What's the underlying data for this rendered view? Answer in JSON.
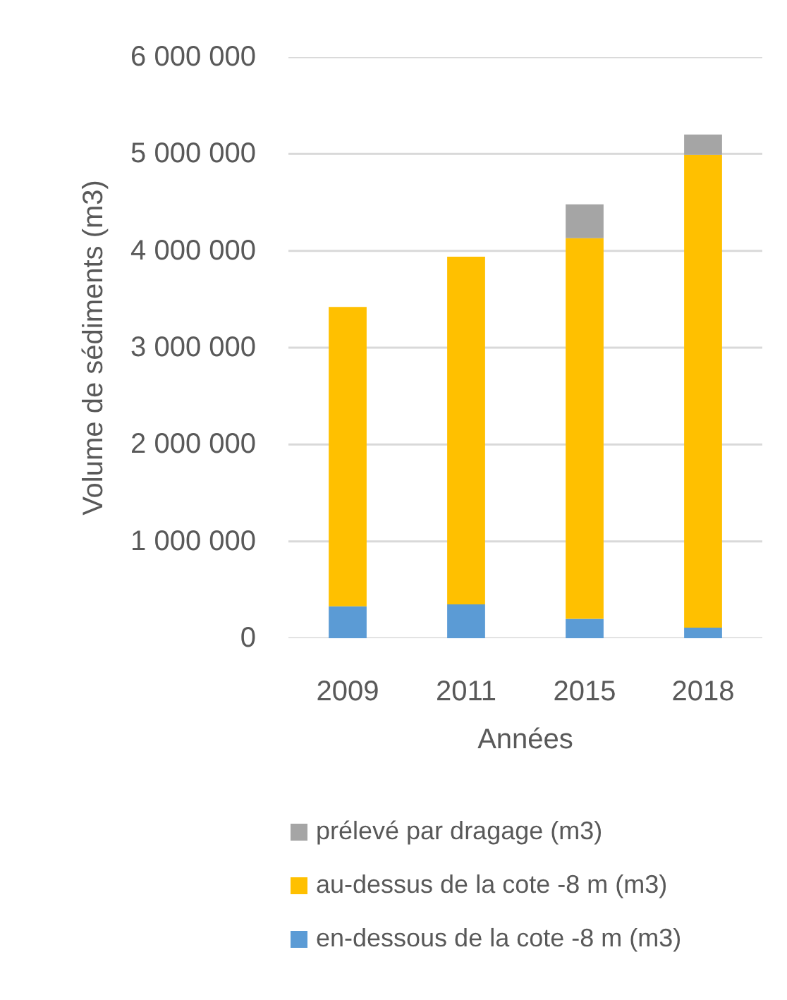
{
  "chart_data": {
    "type": "bar",
    "stacked": true,
    "categories": [
      "2009",
      "2011",
      "2015",
      "2018"
    ],
    "series": [
      {
        "name": "en-dessous de la cote -8 m (m3)",
        "color": "#5b9bd5",
        "values": [
          330000,
          350000,
          200000,
          110000
        ]
      },
      {
        "name": "au-dessus de la cote -8 m (m3)",
        "color": "#ffc000",
        "values": [
          3090000,
          3590000,
          3930000,
          4880000
        ]
      },
      {
        "name": "prélevé par dragage (m3)",
        "color": "#a5a5a5",
        "values": [
          null,
          null,
          350000,
          210000
        ]
      }
    ],
    "xlabel": "Années",
    "ylabel": "Volume de sédiments (m3)",
    "ylim": [
      0,
      6000000
    ],
    "yticks": [
      {
        "value": 0,
        "label": "0"
      },
      {
        "value": 1000000,
        "label": "1 000 000"
      },
      {
        "value": 2000000,
        "label": "2 000 000"
      },
      {
        "value": 3000000,
        "label": "3 000 000"
      },
      {
        "value": 4000000,
        "label": "4 000 000"
      },
      {
        "value": 5000000,
        "label": "5 000 000"
      },
      {
        "value": 6000000,
        "label": "6 000 000"
      }
    ],
    "grid": "y",
    "legend": "bottom"
  }
}
